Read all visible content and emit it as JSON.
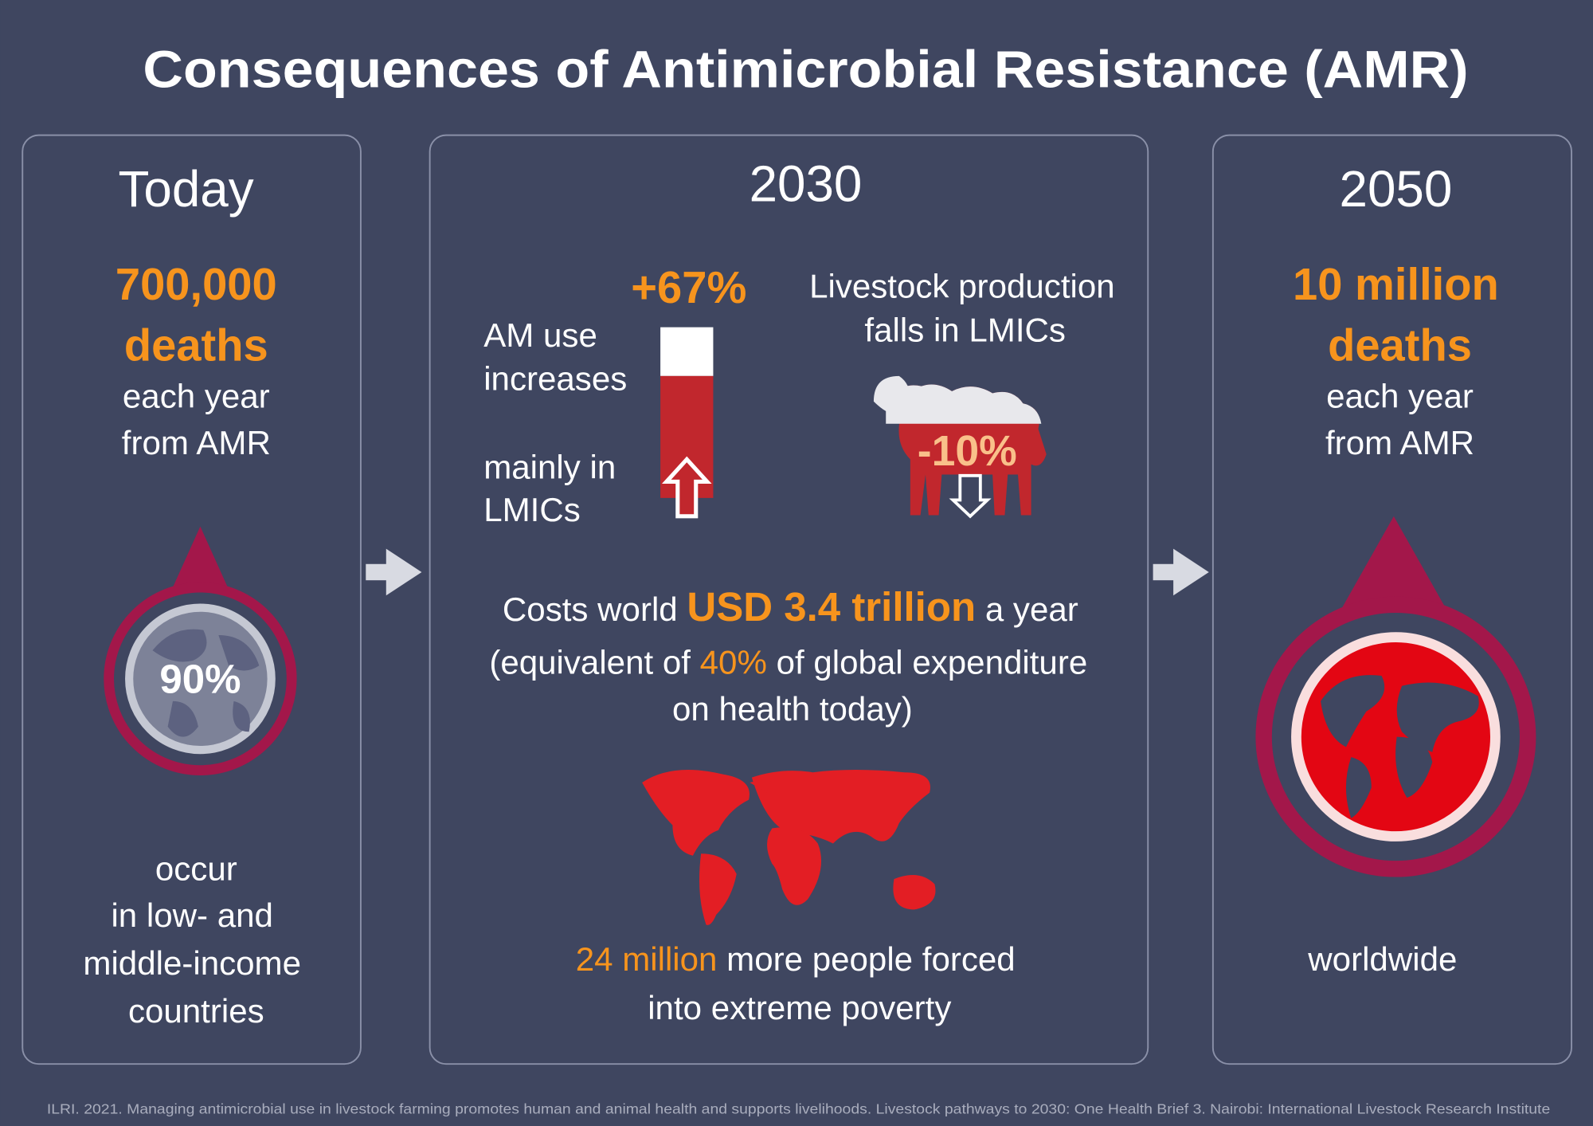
{
  "title": "Consequences of Antimicrobial Resistance (AMR)",
  "today": {
    "heading": "Today",
    "stat": "700,000",
    "stat_unit": "deaths",
    "lines": [
      "each year",
      "from AMR"
    ],
    "badge": "90%",
    "footer": [
      "occur",
      "in low- and",
      "middle-income",
      "countries"
    ]
  },
  "y2030": {
    "heading": "2030",
    "am_change": "+67%",
    "am_text": [
      "AM use",
      "increases"
    ],
    "am_note": [
      "mainly in",
      "LMICs"
    ],
    "livestock_text": [
      "Livestock production",
      "falls in LMICs"
    ],
    "livestock_change": "-10%",
    "cost": {
      "prefix": "Costs world ",
      "highlight": "USD 3.4 trillion",
      "suffix": " a year"
    },
    "cost_note": {
      "prefix": "(equivalent of ",
      "highlight": "40%",
      "suffix": " of global expenditure",
      "line2": "on health today)"
    },
    "poverty": {
      "highlight": "24 million",
      "suffix": " more people forced",
      "line2": "into extreme poverty"
    }
  },
  "y2050": {
    "heading": "2050",
    "stat": "10 million",
    "stat_unit": "deaths",
    "lines": [
      "each year",
      "from AMR"
    ],
    "footer": "worldwide"
  },
  "citation": "ILRI. 2021. Managing antimicrobial use in livestock farming promotes human and animal health and supports livelihoods. Livestock pathways to 2030: One Health Brief 3. Nairobi: International Livestock Research Institute"
}
